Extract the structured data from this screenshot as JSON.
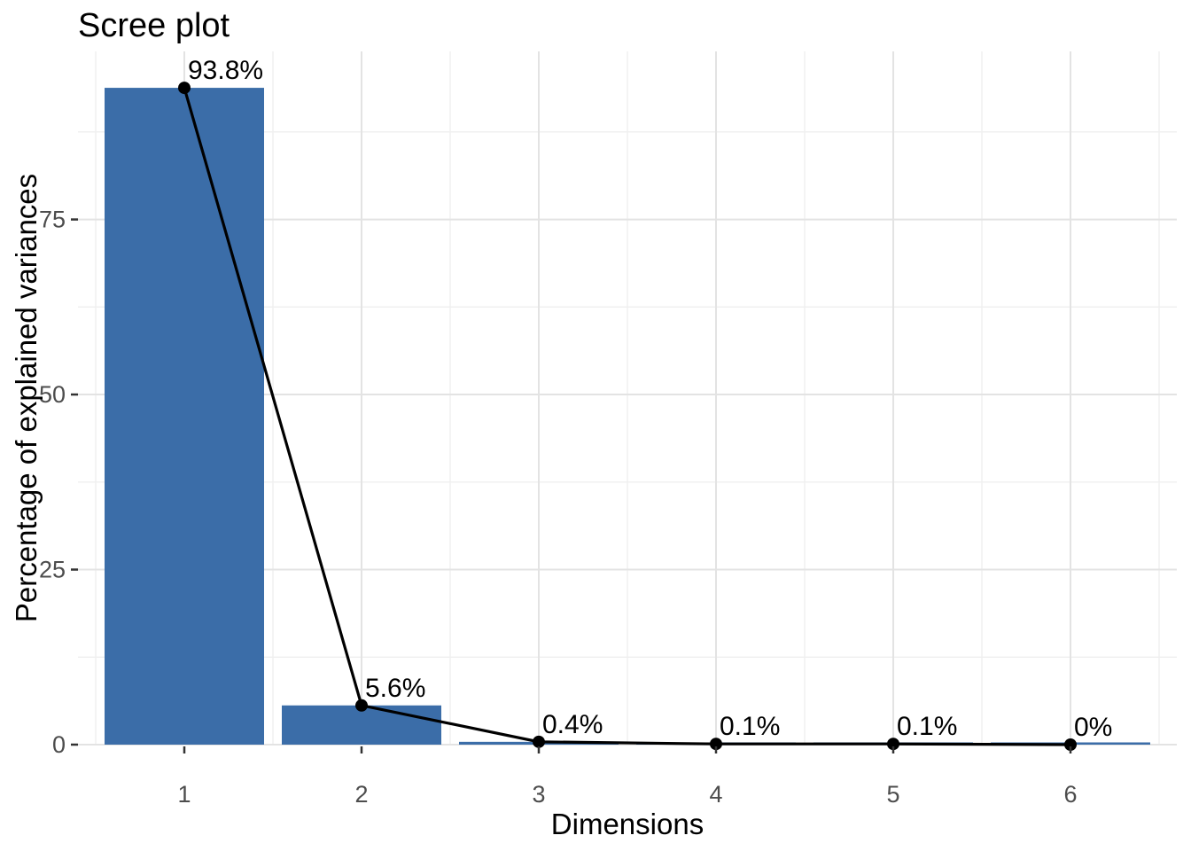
{
  "chart_data": {
    "type": "bar",
    "line_overlay": true,
    "title": "Scree plot",
    "xlabel": "Dimensions",
    "ylabel": "Percentage of explained variances",
    "categories": [
      "1",
      "2",
      "3",
      "4",
      "5",
      "6"
    ],
    "values": [
      93.8,
      5.6,
      0.4,
      0.1,
      0.1,
      0.0
    ],
    "point_labels": [
      "93.8%",
      "5.6%",
      "0.4%",
      "0.1%",
      "0.1%",
      "0%"
    ],
    "yticks": [
      0,
      25,
      50,
      75
    ],
    "yticks_minor": [
      12.5,
      37.5,
      62.5,
      87.5
    ],
    "ylim": [
      0,
      99.0
    ],
    "xlim_units": [
      0.4,
      6.6
    ],
    "legend": "none",
    "grid": "on",
    "colors": {
      "bar_fill": "#3B6DA8",
      "line": "#000000",
      "point": "#000000",
      "label_text": "#000000",
      "tick_text": "#4D4D4D",
      "tick_mark": "#333333",
      "grid_major": "#E3E3E3",
      "grid_minor": "#EFEFEF",
      "background": "#FFFFFF"
    }
  }
}
